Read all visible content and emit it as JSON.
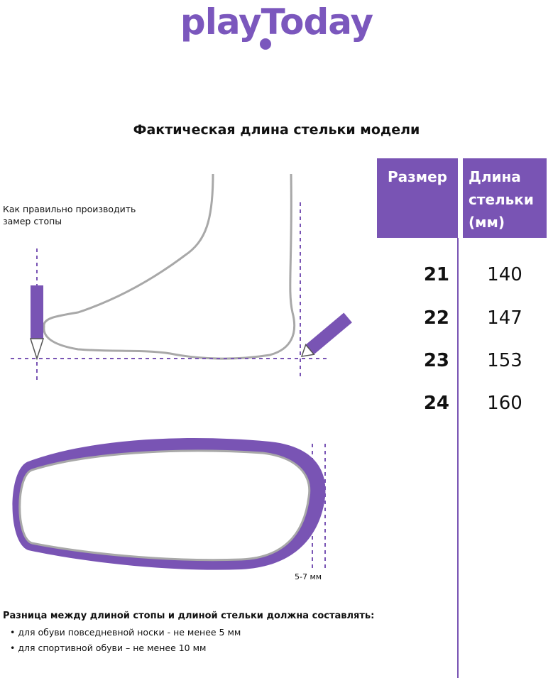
{
  "logo": {
    "text": "playToday"
  },
  "title": "Фактическая длина стельки модели",
  "table": {
    "headers": {
      "size": "Размер",
      "length": "Длина стельки (мм)"
    },
    "rows": [
      {
        "size": "21",
        "length": "140"
      },
      {
        "size": "22",
        "length": "147"
      },
      {
        "size": "23",
        "length": "153"
      },
      {
        "size": "24",
        "length": "160"
      }
    ]
  },
  "illustration": {
    "measure_note": "Как правильно производить замер стопы",
    "gap_label": "5-7 мм"
  },
  "notes": {
    "title": "Разница между длиной стопы и длиной стельки должна составлять:",
    "items": [
      "для обуви повседневной носки -  не менее 5 мм",
      "для спортивной обуви – не менее 10 мм"
    ]
  },
  "colors": {
    "accent": "#7954b4",
    "outline": "#a8a8a8"
  }
}
